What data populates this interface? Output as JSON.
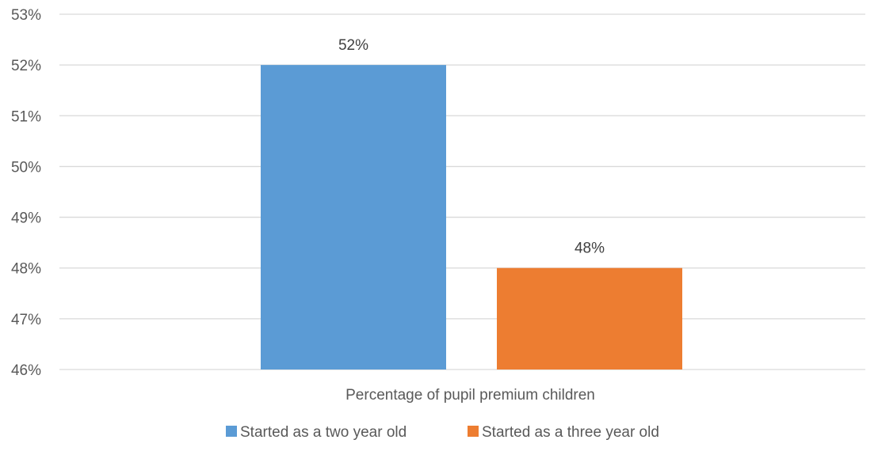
{
  "chart_data": {
    "type": "bar",
    "title": "",
    "xlabel": "",
    "ylabel": "",
    "categories": [
      "Percentage of pupil premium children"
    ],
    "series": [
      {
        "name": "Started as a two year old",
        "values": [
          52
        ],
        "color": "#5b9bd5",
        "data_label": "52%"
      },
      {
        "name": "Started as a three year old",
        "values": [
          48
        ],
        "color": "#ed7d31",
        "data_label": "48%"
      }
    ],
    "ylim": [
      46,
      53
    ],
    "y_ticks": [
      46,
      47,
      48,
      49,
      50,
      51,
      52,
      53
    ],
    "y_tick_labels": [
      "46%",
      "47%",
      "48%",
      "49%",
      "50%",
      "51%",
      "52%",
      "53%"
    ],
    "grid": true,
    "legend_position": "bottom"
  }
}
